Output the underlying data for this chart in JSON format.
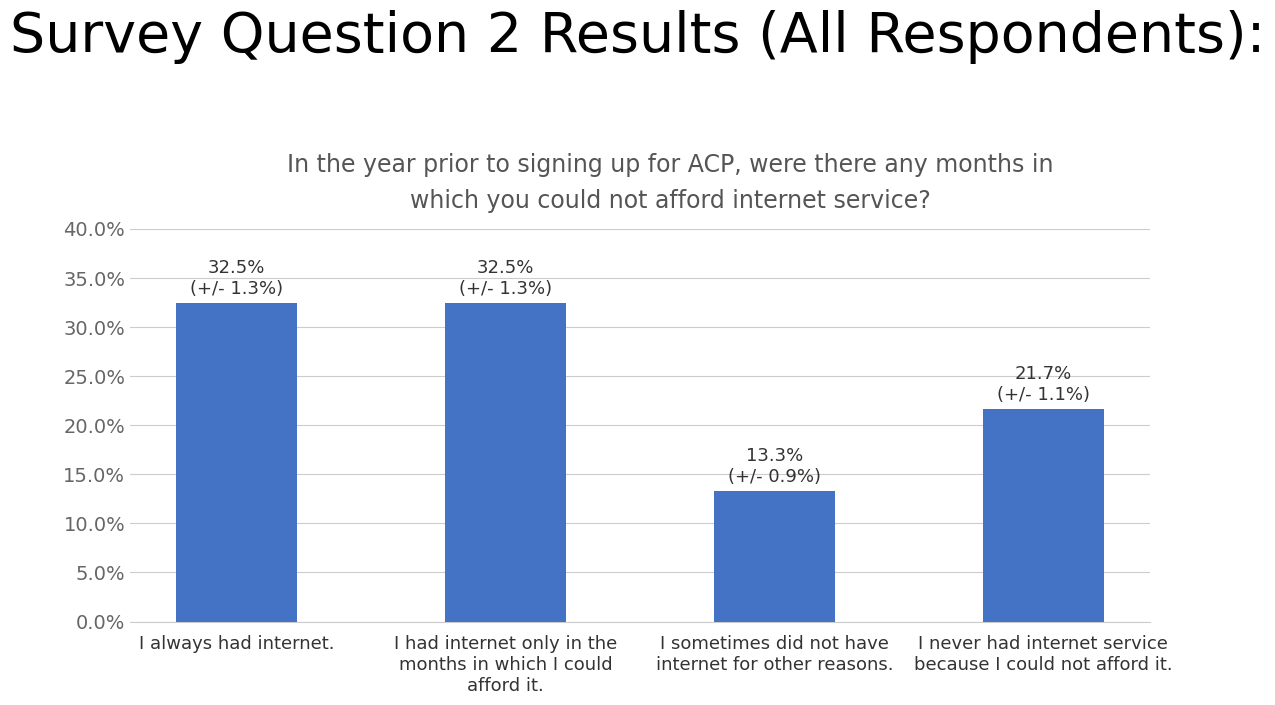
{
  "title": "Survey Question 2 Results (All Respondents):",
  "subtitle": "In the year prior to signing up for ACP, were there any months in\nwhich you could not afford internet service?",
  "categories": [
    "I always had internet.",
    "I had internet only in the\nmonths in which I could\nafford it.",
    "I sometimes did not have\ninternet for other reasons.",
    "I never had internet service\nbecause I could not afford it."
  ],
  "values": [
    32.5,
    32.5,
    13.3,
    21.7
  ],
  "errors": [
    1.3,
    1.3,
    0.9,
    1.1
  ],
  "bar_color": "#4472C4",
  "background_color": "#FFFFFF",
  "ylim": [
    0,
    40
  ],
  "yticks": [
    0,
    5,
    10,
    15,
    20,
    25,
    30,
    35,
    40
  ],
  "title_fontsize": 40,
  "subtitle_fontsize": 17,
  "bar_label_fontsize": 13,
  "tick_label_fontsize": 13,
  "ytick_fontsize": 14,
  "ytick_color": "#666666",
  "grid_color": "#CCCCCC",
  "subtitle_color": "#555555"
}
